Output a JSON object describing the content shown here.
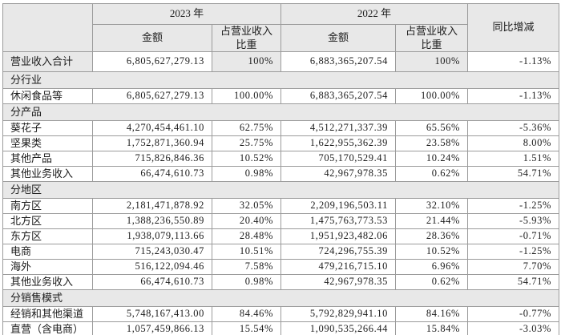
{
  "colors": {
    "shaded_cell_bg": "#e8e8e8",
    "cell_bg": "#ffffff",
    "border": "#9b9b9b",
    "text": "#1c1c1c"
  },
  "table": {
    "header": {
      "year_2023": "2023 年",
      "year_2022": "2022 年",
      "amount_2023": "金额",
      "ratio_2023": "占营业收入比重",
      "amount_2022": "金额",
      "ratio_2022": "占营业收入比重",
      "yoy": "同比增减"
    },
    "rows": [
      {
        "type": "data",
        "highlight": true,
        "label": "营业收入合计",
        "amount_2023": "6,805,627,279.13",
        "ratio_2023": "100%",
        "amount_2022": "6,883,365,207.54",
        "ratio_2022": "100%",
        "yoy": "-1.13%"
      },
      {
        "type": "section",
        "label": "分行业"
      },
      {
        "type": "data",
        "label": "休闲食品等",
        "amount_2023": "6,805,627,279.13",
        "ratio_2023": "100.00%",
        "amount_2022": "6,883,365,207.54",
        "ratio_2022": "100.00%",
        "yoy": "-1.13%"
      },
      {
        "type": "section",
        "label": "分产品"
      },
      {
        "type": "data",
        "label": "葵花子",
        "amount_2023": "4,270,454,461.10",
        "ratio_2023": "62.75%",
        "amount_2022": "4,512,271,337.39",
        "ratio_2022": "65.56%",
        "yoy": "-5.36%"
      },
      {
        "type": "data",
        "label": "坚果类",
        "amount_2023": "1,752,871,360.94",
        "ratio_2023": "25.75%",
        "amount_2022": "1,622,955,362.39",
        "ratio_2022": "23.58%",
        "yoy": "8.00%"
      },
      {
        "type": "data",
        "label": "其他产品",
        "amount_2023": "715,826,846.36",
        "ratio_2023": "10.52%",
        "amount_2022": "705,170,529.41",
        "ratio_2022": "10.24%",
        "yoy": "1.51%"
      },
      {
        "type": "data",
        "label": "其他业务收入",
        "amount_2023": "66,474,610.73",
        "ratio_2023": "0.98%",
        "amount_2022": "42,967,978.35",
        "ratio_2022": "0.62%",
        "yoy": "54.71%"
      },
      {
        "type": "section",
        "label": "分地区"
      },
      {
        "type": "data",
        "label": "南方区",
        "amount_2023": "2,181,471,878.92",
        "ratio_2023": "32.05%",
        "amount_2022": "2,209,196,503.11",
        "ratio_2022": "32.10%",
        "yoy": "-1.25%"
      },
      {
        "type": "data",
        "label": "北方区",
        "amount_2023": "1,388,236,550.89",
        "ratio_2023": "20.40%",
        "amount_2022": "1,475,763,773.53",
        "ratio_2022": "21.44%",
        "yoy": "-5.93%"
      },
      {
        "type": "data",
        "label": "东方区",
        "amount_2023": "1,938,079,113.66",
        "ratio_2023": "28.48%",
        "amount_2022": "1,951,923,482.06",
        "ratio_2022": "28.36%",
        "yoy": "-0.71%"
      },
      {
        "type": "data",
        "label": "电商",
        "amount_2023": "715,243,030.47",
        "ratio_2023": "10.51%",
        "amount_2022": "724,296,755.39",
        "ratio_2022": "10.52%",
        "yoy": "-1.25%"
      },
      {
        "type": "data",
        "label": "海外",
        "amount_2023": "516,122,094.46",
        "ratio_2023": "7.58%",
        "amount_2022": "479,216,715.10",
        "ratio_2022": "6.96%",
        "yoy": "7.70%"
      },
      {
        "type": "data",
        "label": "其他业务收入",
        "amount_2023": "66,474,610.73",
        "ratio_2023": "0.98%",
        "amount_2022": "42,967,978.35",
        "ratio_2022": "0.62%",
        "yoy": "54.71%"
      },
      {
        "type": "section",
        "label": "分销售模式"
      },
      {
        "type": "data",
        "label": "经销和其他渠道",
        "amount_2023": "5,748,167,413.00",
        "ratio_2023": "84.46%",
        "amount_2022": "5,792,829,941.10",
        "ratio_2022": "84.16%",
        "yoy": "-0.77%"
      },
      {
        "type": "data",
        "label": "直营（含电商）",
        "amount_2023": "1,057,459,866.13",
        "ratio_2023": "15.54%",
        "amount_2022": "1,090,535,266.44",
        "ratio_2022": "15.84%",
        "yoy": "-3.03%"
      }
    ]
  }
}
